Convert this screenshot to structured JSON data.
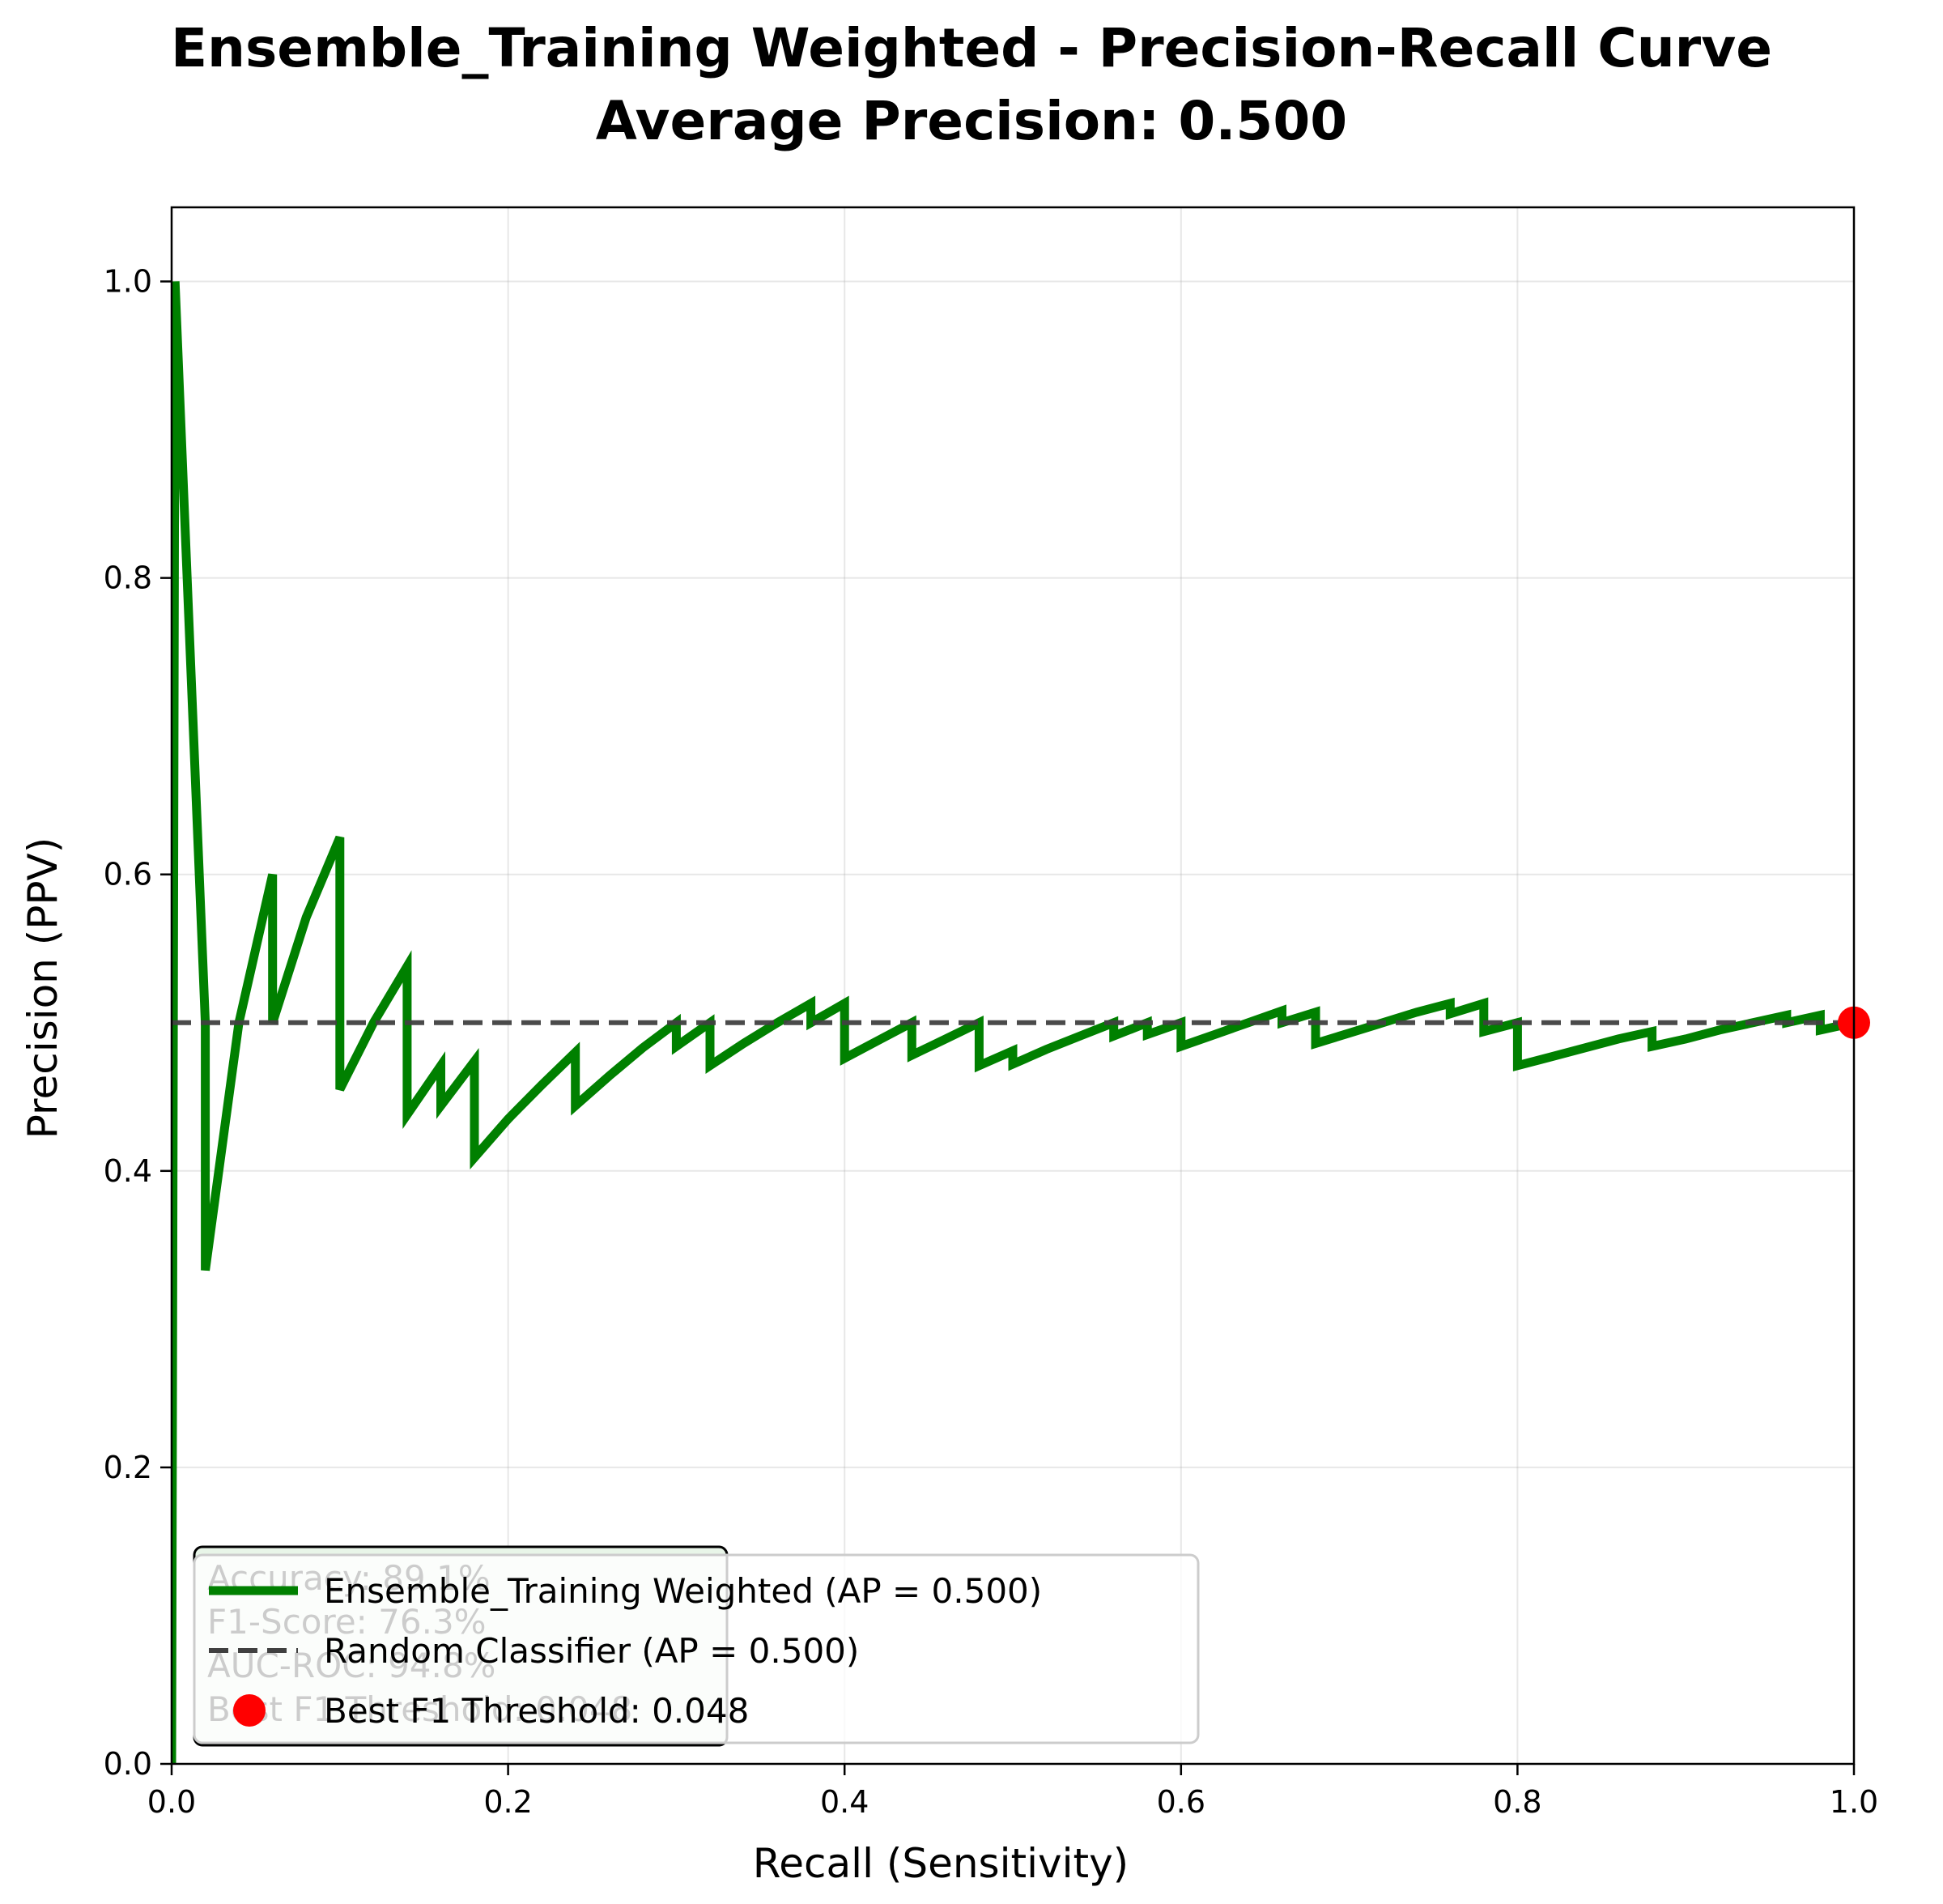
{
  "chart_data": {
    "type": "line",
    "title": "Ensemble_Training Weighted - Precision-Recall Curve",
    "subtitle": "Average Precision: 0.500",
    "xlabel": "Recall (Sensitivity)",
    "ylabel": "Precision (PPV)",
    "xlim": [
      0.0,
      1.0
    ],
    "ylim": [
      0.0,
      1.05
    ],
    "grid": true,
    "legend_position": "lower-left",
    "x_ticks": [
      "0.0",
      "0.2",
      "0.4",
      "0.6",
      "0.8",
      "1.0"
    ],
    "y_ticks": [
      "0.0",
      "0.2",
      "0.4",
      "0.6",
      "0.8",
      "1.0"
    ],
    "colors": {
      "curve": "#008000",
      "baseline": "#404040",
      "best_point": "#ff0000",
      "metrics_box": "#e8f5e8"
    },
    "series": [
      {
        "name": "Ensemble_Training Weighted (AP = 0.500)",
        "style": "solid",
        "x": [
          0.0,
          0.002,
          0.02,
          0.02,
          0.02,
          0.04,
          0.06,
          0.06,
          0.08,
          0.1,
          0.1,
          0.12,
          0.14,
          0.14,
          0.16,
          0.16,
          0.18,
          0.18,
          0.2,
          0.22,
          0.24,
          0.24,
          0.26,
          0.28,
          0.3,
          0.3,
          0.32,
          0.32,
          0.34,
          0.36,
          0.38,
          0.38,
          0.4,
          0.4,
          0.42,
          0.44,
          0.44,
          0.46,
          0.48,
          0.48,
          0.5,
          0.5,
          0.52,
          0.54,
          0.56,
          0.56,
          0.58,
          0.58,
          0.6,
          0.6,
          0.62,
          0.64,
          0.66,
          0.66,
          0.68,
          0.68,
          0.7,
          0.72,
          0.74,
          0.76,
          0.76,
          0.78,
          0.78,
          0.8,
          0.8,
          0.82,
          0.84,
          0.86,
          0.88,
          0.88,
          0.9,
          0.92,
          0.94,
          0.96,
          0.96,
          0.98,
          0.98,
          1.0
        ],
        "y": [
          0.0,
          1.0,
          0.5,
          0.333,
          0.333,
          0.5,
          0.6,
          0.5,
          0.571,
          0.625,
          0.455,
          0.5,
          0.538,
          0.438,
          0.471,
          0.444,
          0.474,
          0.409,
          0.435,
          0.458,
          0.48,
          0.444,
          0.464,
          0.483,
          0.5,
          0.484,
          0.5,
          0.471,
          0.486,
          0.5,
          0.513,
          0.5,
          0.513,
          0.476,
          0.488,
          0.5,
          0.478,
          0.489,
          0.5,
          0.471,
          0.481,
          0.472,
          0.482,
          0.491,
          0.5,
          0.491,
          0.5,
          0.492,
          0.5,
          0.484,
          0.492,
          0.5,
          0.508,
          0.5,
          0.507,
          0.486,
          0.493,
          0.5,
          0.507,
          0.513,
          0.506,
          0.513,
          0.494,
          0.5,
          0.471,
          0.477,
          0.483,
          0.489,
          0.494,
          0.484,
          0.489,
          0.495,
          0.5,
          0.505,
          0.5,
          0.505,
          0.495,
          0.5
        ]
      },
      {
        "name": "Random Classifier (AP = 0.500)",
        "style": "dashed",
        "x": [
          0.0,
          1.0
        ],
        "y": [
          0.5,
          0.5
        ]
      }
    ],
    "best_point": {
      "name": "Best F1 Threshold: 0.048",
      "x": 1.0,
      "y": 0.5
    },
    "metrics_box": {
      "lines": [
        "Accuracy: 89.1%",
        "F1-Score: 76.3%",
        "AUC-ROC: 94.8%",
        "Best F1 Threshold: 0.048"
      ]
    }
  }
}
